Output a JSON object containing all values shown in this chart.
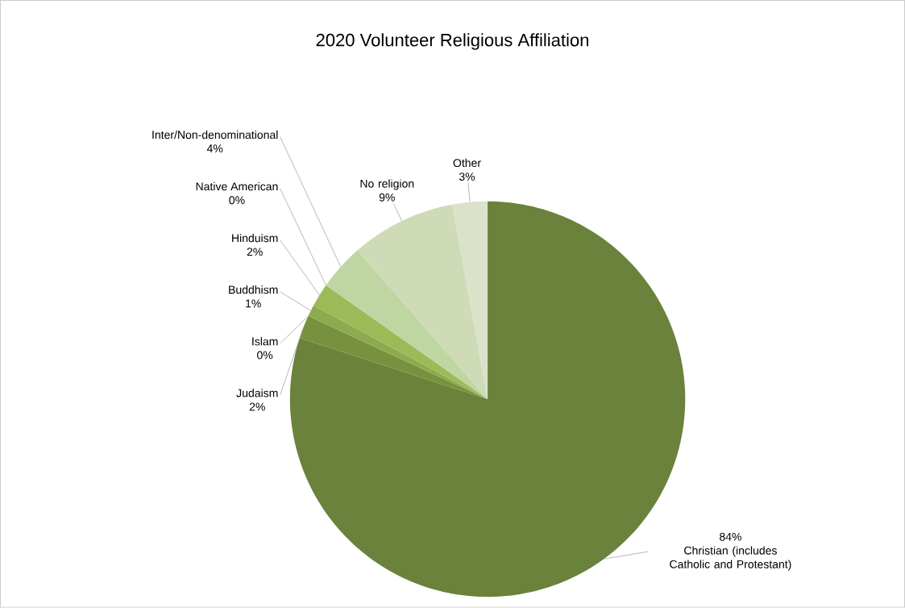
{
  "chart_data": {
    "type": "pie",
    "title": "2020 Volunteer Religious Affiliation",
    "categories": [
      "Christian (includes Catholic and Protestant)",
      "Judaism",
      "Islam",
      "Buddhism",
      "Hinduism",
      "Native American",
      "Inter/Non-denominational",
      "No religion",
      "Other"
    ],
    "values": [
      84,
      2,
      0,
      1,
      2,
      0,
      4,
      9,
      3
    ],
    "value_labels": [
      "84%",
      "2%",
      "0%",
      "1%",
      "2%",
      "0%",
      "4%",
      "9%",
      "3%"
    ],
    "colors": [
      "#6a823b",
      "#78913f",
      "#809a42",
      "#8cab4e",
      "#9bbb59",
      "#a9c679",
      "#c0d6a2",
      "#cedbb6",
      "#dae3c9"
    ],
    "legend": false
  }
}
